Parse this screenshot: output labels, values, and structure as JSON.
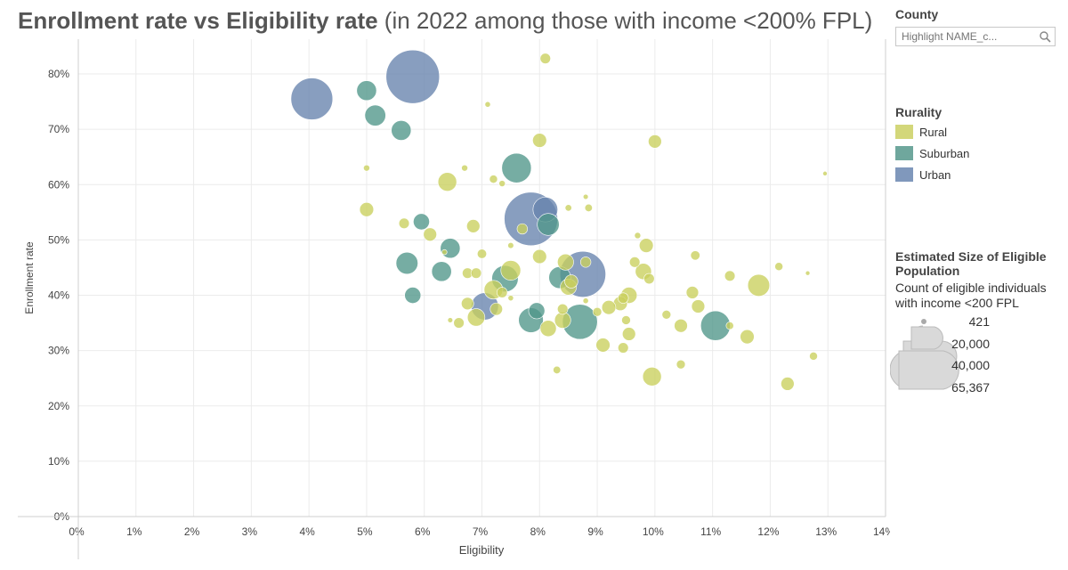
{
  "title": {
    "main": "Enrollment rate vs Eligibility rate",
    "sub": "(in 2022 among those with income <200% FPL)"
  },
  "county_filter": {
    "label": "County",
    "placeholder": "Highlight NAME_c...",
    "icon": "search-icon"
  },
  "legend": {
    "rurality_title": "Rurality",
    "categories": [
      {
        "label": "Rural",
        "color": "#c9cf5c"
      },
      {
        "label": "Suburban",
        "color": "#4f9689"
      },
      {
        "label": "Urban",
        "color": "#6683ad"
      }
    ],
    "size_title": "Estimated Size of Eligible Population",
    "size_desc": "Count of eligible individuals with income <200 FPL",
    "size_items": [
      {
        "label": "421",
        "value": 421
      },
      {
        "label": "20,000",
        "value": 20000
      },
      {
        "label": "40,000",
        "value": 40000
      },
      {
        "label": "65,367",
        "value": 65367
      }
    ]
  },
  "chart_data": {
    "type": "scatter",
    "xlabel": "Eligibility",
    "ylabel": "Enrollment rate",
    "xlim": [
      0,
      14
    ],
    "ylim": [
      0,
      85
    ],
    "x_unit": "%",
    "y_unit": "%",
    "x_ticks": [
      {
        "value": 0,
        "label": "0%"
      },
      {
        "value": 1,
        "label": "1%"
      },
      {
        "value": 2,
        "label": "2%"
      },
      {
        "value": 3,
        "label": "3%"
      },
      {
        "value": 4,
        "label": "4%"
      },
      {
        "value": 5,
        "label": "5%"
      },
      {
        "value": 6,
        "label": "6%"
      },
      {
        "value": 7,
        "label": "7%"
      },
      {
        "value": 8,
        "label": "8%"
      },
      {
        "value": 9,
        "label": "9%"
      },
      {
        "value": 10,
        "label": "10%"
      },
      {
        "value": 11,
        "label": "11%"
      },
      {
        "value": 12,
        "label": "12%"
      },
      {
        "value": 13,
        "label": "13%"
      },
      {
        "value": 14,
        "label": "14%"
      }
    ],
    "y_ticks": [
      {
        "value": 0,
        "label": "0%"
      },
      {
        "value": 10,
        "label": "10%"
      },
      {
        "value": 20,
        "label": "20%"
      },
      {
        "value": 30,
        "label": "30%"
      },
      {
        "value": 40,
        "label": "40%"
      },
      {
        "value": 50,
        "label": "50%"
      },
      {
        "value": 60,
        "label": "60%"
      },
      {
        "value": 70,
        "label": "70%"
      },
      {
        "value": 80,
        "label": "80%"
      }
    ],
    "grid": true,
    "size_max": 65367,
    "series": [
      {
        "name": "Urban",
        "color": "#6683ad",
        "points": [
          {
            "x": 4.05,
            "y": 75.5,
            "size": 40000
          },
          {
            "x": 5.8,
            "y": 79.5,
            "size": 65367
          },
          {
            "x": 7.85,
            "y": 53.8,
            "size": 65367
          },
          {
            "x": 8.1,
            "y": 55.5,
            "size": 14000
          },
          {
            "x": 8.75,
            "y": 43.8,
            "size": 48000
          },
          {
            "x": 7.05,
            "y": 38.0,
            "size": 17000
          }
        ]
      },
      {
        "name": "Suburban",
        "color": "#4f9689",
        "points": [
          {
            "x": 5.0,
            "y": 77.0,
            "size": 9000
          },
          {
            "x": 5.15,
            "y": 72.5,
            "size": 10000
          },
          {
            "x": 5.6,
            "y": 69.8,
            "size": 9000
          },
          {
            "x": 7.6,
            "y": 63.0,
            "size": 20000
          },
          {
            "x": 8.15,
            "y": 52.8,
            "size": 11000
          },
          {
            "x": 5.95,
            "y": 53.3,
            "size": 6000
          },
          {
            "x": 6.45,
            "y": 48.5,
            "size": 9000
          },
          {
            "x": 5.7,
            "y": 45.8,
            "size": 11000
          },
          {
            "x": 6.3,
            "y": 44.3,
            "size": 9000
          },
          {
            "x": 5.8,
            "y": 40.0,
            "size": 6000
          },
          {
            "x": 7.4,
            "y": 43.0,
            "size": 16000
          },
          {
            "x": 8.35,
            "y": 43.2,
            "size": 11000
          },
          {
            "x": 7.95,
            "y": 37.2,
            "size": 6000
          },
          {
            "x": 7.85,
            "y": 35.5,
            "size": 14000
          },
          {
            "x": 8.7,
            "y": 35.2,
            "size": 28000
          },
          {
            "x": 11.05,
            "y": 34.5,
            "size": 20000
          }
        ]
      },
      {
        "name": "Rural",
        "color": "#c9cf5c",
        "points": [
          {
            "x": 8.1,
            "y": 82.8,
            "size": 2500
          },
          {
            "x": 7.1,
            "y": 74.5,
            "size": 700
          },
          {
            "x": 8.0,
            "y": 68.0,
            "size": 4500
          },
          {
            "x": 10.0,
            "y": 67.8,
            "size": 4000
          },
          {
            "x": 5.0,
            "y": 63.0,
            "size": 900
          },
          {
            "x": 6.7,
            "y": 63.0,
            "size": 900
          },
          {
            "x": 6.4,
            "y": 60.5,
            "size": 8000
          },
          {
            "x": 7.2,
            "y": 61.0,
            "size": 1500
          },
          {
            "x": 7.35,
            "y": 60.2,
            "size": 900
          },
          {
            "x": 12.95,
            "y": 62.0,
            "size": 421
          },
          {
            "x": 5.0,
            "y": 55.5,
            "size": 4500
          },
          {
            "x": 8.8,
            "y": 57.8,
            "size": 600
          },
          {
            "x": 8.5,
            "y": 55.8,
            "size": 1000
          },
          {
            "x": 8.85,
            "y": 55.8,
            "size": 1300
          },
          {
            "x": 5.65,
            "y": 53.0,
            "size": 2500
          },
          {
            "x": 6.85,
            "y": 52.5,
            "size": 4000
          },
          {
            "x": 7.7,
            "y": 52.0,
            "size": 2500
          },
          {
            "x": 6.1,
            "y": 51.0,
            "size": 4000
          },
          {
            "x": 9.7,
            "y": 50.8,
            "size": 900
          },
          {
            "x": 9.85,
            "y": 49.0,
            "size": 4500
          },
          {
            "x": 7.5,
            "y": 49.0,
            "size": 800
          },
          {
            "x": 6.35,
            "y": 47.8,
            "size": 600
          },
          {
            "x": 7.0,
            "y": 47.5,
            "size": 2000
          },
          {
            "x": 8.0,
            "y": 47.0,
            "size": 4500
          },
          {
            "x": 10.7,
            "y": 47.2,
            "size": 2000
          },
          {
            "x": 9.65,
            "y": 46.0,
            "size": 2500
          },
          {
            "x": 8.45,
            "y": 46.0,
            "size": 6000
          },
          {
            "x": 8.8,
            "y": 46.0,
            "size": 2500
          },
          {
            "x": 12.15,
            "y": 45.2,
            "size": 1500
          },
          {
            "x": 7.5,
            "y": 44.5,
            "size": 9000
          },
          {
            "x": 9.8,
            "y": 44.3,
            "size": 6000
          },
          {
            "x": 6.75,
            "y": 44.0,
            "size": 2500
          },
          {
            "x": 6.9,
            "y": 44.0,
            "size": 2500
          },
          {
            "x": 12.65,
            "y": 44.0,
            "size": 421
          },
          {
            "x": 11.3,
            "y": 43.5,
            "size": 2500
          },
          {
            "x": 9.9,
            "y": 43.0,
            "size": 2500
          },
          {
            "x": 8.55,
            "y": 42.5,
            "size": 4000
          },
          {
            "x": 11.8,
            "y": 41.8,
            "size": 11000
          },
          {
            "x": 8.5,
            "y": 41.5,
            "size": 6000
          },
          {
            "x": 7.2,
            "y": 41.0,
            "size": 8000
          },
          {
            "x": 7.35,
            "y": 40.5,
            "size": 2500
          },
          {
            "x": 10.65,
            "y": 40.5,
            "size": 3500
          },
          {
            "x": 9.55,
            "y": 40.0,
            "size": 6000
          },
          {
            "x": 9.45,
            "y": 39.5,
            "size": 2500
          },
          {
            "x": 7.5,
            "y": 39.5,
            "size": 700
          },
          {
            "x": 8.8,
            "y": 39.0,
            "size": 700
          },
          {
            "x": 9.4,
            "y": 38.5,
            "size": 4500
          },
          {
            "x": 10.75,
            "y": 38.0,
            "size": 4000
          },
          {
            "x": 6.75,
            "y": 38.5,
            "size": 3500
          },
          {
            "x": 9.2,
            "y": 37.8,
            "size": 4500
          },
          {
            "x": 9.0,
            "y": 37.0,
            "size": 1800
          },
          {
            "x": 8.4,
            "y": 37.5,
            "size": 2500
          },
          {
            "x": 7.25,
            "y": 37.5,
            "size": 3500
          },
          {
            "x": 10.2,
            "y": 36.5,
            "size": 1800
          },
          {
            "x": 6.9,
            "y": 36.0,
            "size": 7000
          },
          {
            "x": 6.45,
            "y": 35.5,
            "size": 600
          },
          {
            "x": 6.6,
            "y": 35.0,
            "size": 2500
          },
          {
            "x": 8.4,
            "y": 35.5,
            "size": 6000
          },
          {
            "x": 8.15,
            "y": 34.0,
            "size": 6000
          },
          {
            "x": 9.5,
            "y": 35.5,
            "size": 1800
          },
          {
            "x": 10.45,
            "y": 34.5,
            "size": 4000
          },
          {
            "x": 11.3,
            "y": 34.5,
            "size": 1300
          },
          {
            "x": 9.55,
            "y": 33.0,
            "size": 4000
          },
          {
            "x": 11.6,
            "y": 32.5,
            "size": 4500
          },
          {
            "x": 9.1,
            "y": 31.0,
            "size": 4500
          },
          {
            "x": 9.45,
            "y": 30.5,
            "size": 2500
          },
          {
            "x": 12.75,
            "y": 29.0,
            "size": 1500
          },
          {
            "x": 10.45,
            "y": 27.5,
            "size": 1800
          },
          {
            "x": 8.3,
            "y": 26.5,
            "size": 1300
          },
          {
            "x": 9.95,
            "y": 25.3,
            "size": 8000
          },
          {
            "x": 12.3,
            "y": 24.0,
            "size": 4000
          }
        ]
      }
    ]
  }
}
